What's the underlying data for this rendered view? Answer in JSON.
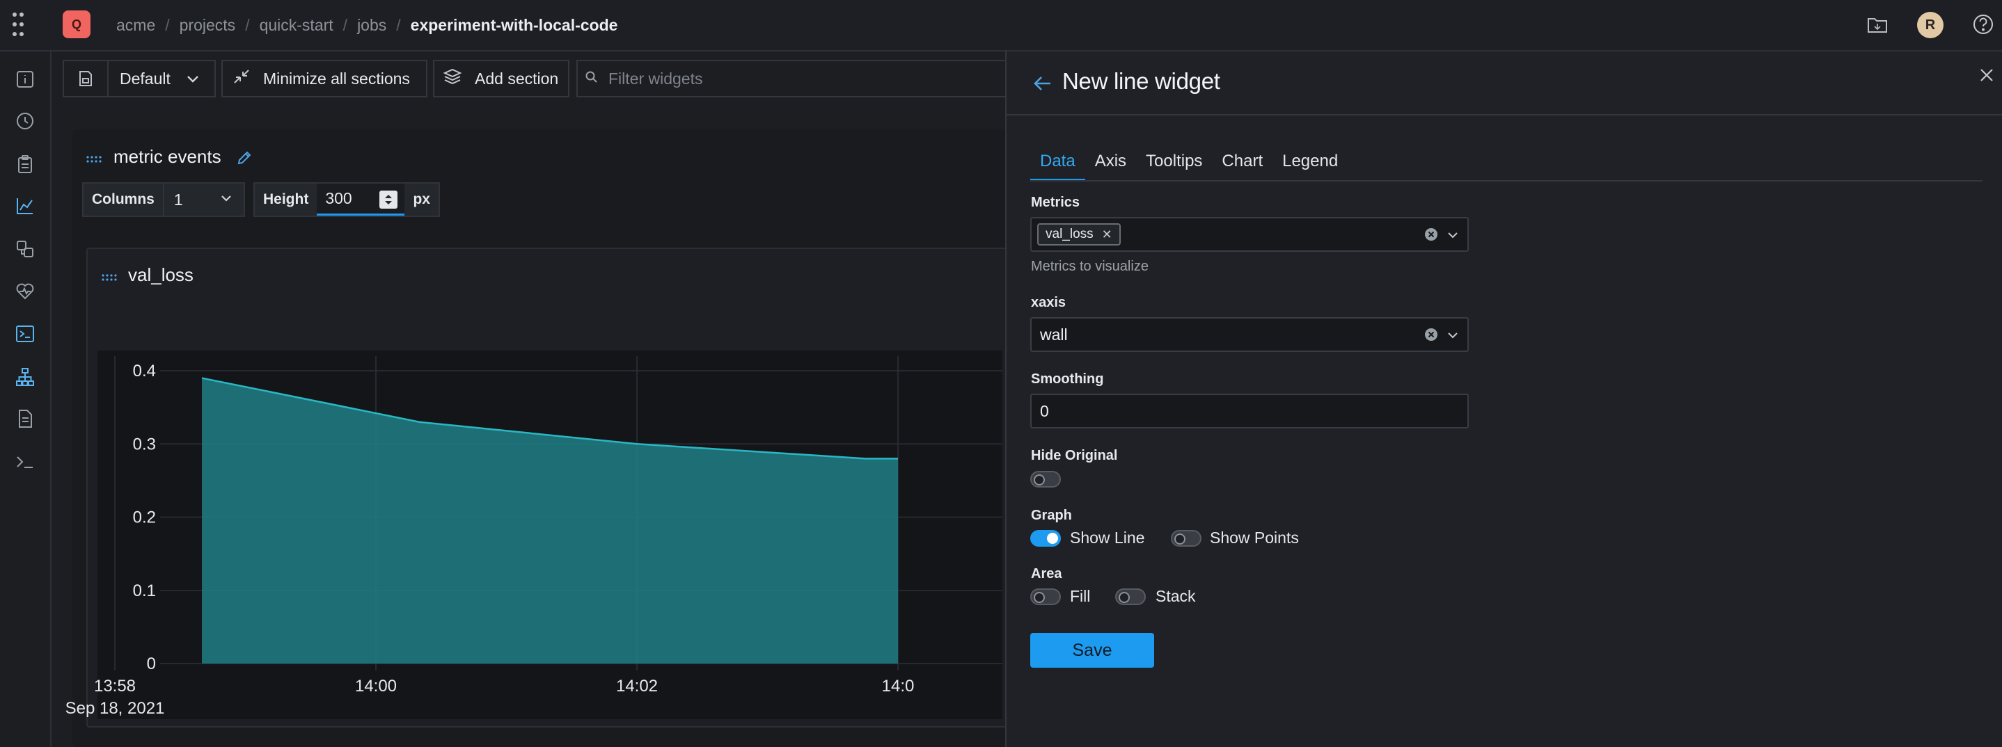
{
  "breadcrumb": {
    "org": "acme",
    "projects": "projects",
    "project": "quick-start",
    "jobs": "jobs",
    "current": "experiment-with-local-code"
  },
  "logo_letter": "Q",
  "avatar_initial": "R",
  "toolbar": {
    "preset": "Default",
    "minimize_label": "Minimize all sections",
    "add_section_label": "Add section",
    "filter_placeholder": "Filter widgets"
  },
  "section": {
    "title": "metric events",
    "columns_label": "Columns",
    "columns_value": "1",
    "height_label": "Height",
    "height_value": "300",
    "height_unit": "px"
  },
  "widget": {
    "title": "val_loss"
  },
  "chart_data": {
    "type": "area",
    "x": [
      "13:58:40",
      "14:00:20",
      "14:02:00",
      "14:03:45",
      "14:04:00"
    ],
    "series": [
      {
        "name": "val_loss",
        "values": [
          0.39,
          0.33,
          0.3,
          0.28,
          0.28
        ]
      }
    ],
    "x_tick_labels": [
      "13:58",
      "14:00",
      "14:02",
      "14:0"
    ],
    "x_secondary_label": "Sep 18, 2021",
    "y_tick_labels": [
      "0.4",
      "0.3",
      "0.2",
      "0.1",
      "0"
    ],
    "ylim": [
      0,
      0.42
    ],
    "grid": true,
    "colors": {
      "line": "#29b8c4",
      "fill": "#1f7f86"
    }
  },
  "drawer": {
    "title": "New line widget",
    "tabs": [
      "Data",
      "Axis",
      "Tooltips",
      "Chart",
      "Legend"
    ],
    "active_tab": "Data",
    "metrics": {
      "label": "Metrics",
      "chip": "val_loss",
      "helper": "Metrics to visualize"
    },
    "xaxis": {
      "label": "xaxis",
      "value": "wall"
    },
    "smoothing": {
      "label": "Smoothing",
      "value": "0"
    },
    "hide_original": {
      "label": "Hide Original",
      "on": false
    },
    "graph": {
      "label": "Graph",
      "show_line_label": "Show Line",
      "show_line_on": true,
      "show_points_label": "Show Points",
      "show_points_on": false
    },
    "area": {
      "label": "Area",
      "fill_label": "Fill",
      "fill_on": false,
      "stack_label": "Stack",
      "stack_on": false
    },
    "save_label": "Save"
  },
  "colors": {
    "accent": "#1d9bf0",
    "logo": "#f0655f",
    "avatar": "#e2c9a6"
  }
}
